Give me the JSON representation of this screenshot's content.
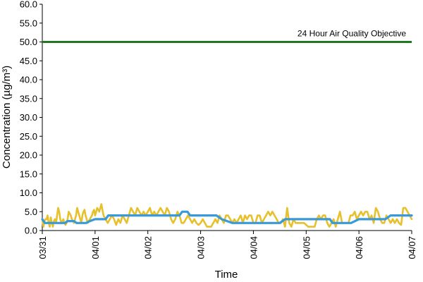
{
  "chart_data": {
    "type": "line",
    "xlabel": "Time",
    "ylabel": "Concentration (µg/m³)",
    "x_ticks": [
      "03/31",
      "04/01",
      "04/02",
      "04/03",
      "04/04",
      "04/05",
      "04/06",
      "04/07"
    ],
    "ylim": [
      0,
      60
    ],
    "y_ticks": [
      "0.0",
      "5.0",
      "10.0",
      "15.0",
      "20.0",
      "25.0",
      "30.0",
      "35.0",
      "40.0",
      "45.0",
      "50.0",
      "55.0",
      "60.0"
    ],
    "grid": false,
    "legend": "none",
    "objective": {
      "label": "24 Hour Air Quality Objective",
      "value": 50.0,
      "color": "#1f7a1f"
    },
    "series": [
      {
        "color": "#e8c02c",
        "x": [
          0,
          0.02,
          0.04,
          0.06,
          0.08,
          0.1,
          0.12,
          0.14,
          0.16,
          0.18,
          0.2,
          0.22,
          0.24,
          0.26,
          0.28,
          0.3,
          0.32,
          0.34,
          0.36,
          0.38,
          0.4,
          0.42,
          0.44,
          0.46,
          0.48,
          0.5,
          0.52,
          0.54,
          0.56,
          0.58,
          0.6,
          0.62,
          0.64,
          0.66,
          0.68,
          0.7,
          0.72,
          0.74,
          0.76,
          0.78,
          0.8,
          0.82,
          0.84,
          0.86,
          0.88,
          0.9,
          0.92,
          0.94,
          0.96,
          0.98,
          1.0,
          1.04,
          1.08,
          1.12,
          1.16,
          1.2,
          1.24,
          1.28,
          1.32,
          1.36,
          1.4,
          1.44,
          1.48,
          1.52,
          1.56,
          1.6,
          1.64,
          1.68,
          1.72,
          1.76,
          1.8,
          1.84,
          1.88,
          1.92,
          1.96,
          2.0,
          2.04,
          2.08,
          2.12,
          2.16,
          2.2,
          2.24,
          2.28,
          2.32,
          2.36,
          2.4,
          2.44,
          2.48,
          2.52,
          2.56,
          2.6,
          2.64,
          2.68,
          2.72,
          2.76,
          2.8,
          2.84,
          2.88,
          2.92,
          2.96,
          3.0,
          3.04,
          3.08,
          3.12,
          3.16,
          3.2,
          3.24,
          3.28,
          3.32,
          3.36,
          3.4,
          3.44,
          3.48,
          3.52,
          3.56,
          3.6,
          3.64,
          3.68,
          3.72,
          3.76,
          3.8,
          3.84,
          3.88,
          3.92,
          3.96,
          4.0,
          4.04,
          4.08,
          4.12,
          4.16,
          4.2,
          4.24,
          4.28,
          4.32,
          4.36,
          4.4,
          4.44,
          4.48,
          4.52,
          4.56,
          4.6,
          4.64,
          4.68,
          4.72,
          4.76,
          4.8,
          4.84,
          4.88,
          4.92,
          4.96,
          5.0,
          5.04,
          5.08,
          5.12,
          5.16,
          5.2,
          5.24,
          5.28,
          5.32,
          5.36,
          5.4,
          5.44,
          5.48,
          5.52,
          5.56,
          5.6,
          5.64,
          5.68,
          5.72,
          5.76,
          5.8,
          5.84,
          5.88,
          5.92,
          5.96,
          6.0,
          6.04,
          6.08,
          6.12,
          6.16,
          6.2,
          6.24,
          6.28,
          6.32,
          6.36,
          6.4,
          6.44,
          6.48,
          6.52,
          6.56,
          6.6,
          6.64,
          6.68,
          6.72,
          6.76,
          6.8,
          6.84,
          6.88,
          6.92,
          6.96,
          7.0
        ],
        "values": [
          3.0,
          1.0,
          2.5,
          3.0,
          3.0,
          4.0,
          2.0,
          1.0,
          3.5,
          2.0,
          1.0,
          2.5,
          3.0,
          2.0,
          4.0,
          6.0,
          5.0,
          3.0,
          2.0,
          2.5,
          3.0,
          2.0,
          1.5,
          2.0,
          3.0,
          5.0,
          4.5,
          4.0,
          3.0,
          2.5,
          2.0,
          3.0,
          4.0,
          6.0,
          5.0,
          4.0,
          3.0,
          2.0,
          4.0,
          5.0,
          5.5,
          4.0,
          3.0,
          2.0,
          2.5,
          3.0,
          3.5,
          4.0,
          5.0,
          5.5,
          4.0,
          6.0,
          5.0,
          7.0,
          4.0,
          3.0,
          2.0,
          3.0,
          4.0,
          3.0,
          1.5,
          3.0,
          2.0,
          4.0,
          3.0,
          2.0,
          4.0,
          6.0,
          5.0,
          4.0,
          6.0,
          5.0,
          4.0,
          5.0,
          4.0,
          5.0,
          6.0,
          4.0,
          5.0,
          4.0,
          5.0,
          6.0,
          5.0,
          4.0,
          6.0,
          5.0,
          3.0,
          2.0,
          3.0,
          5.0,
          4.0,
          2.0,
          2.0,
          3.0,
          4.0,
          3.0,
          2.0,
          3.0,
          2.0,
          1.5,
          2.0,
          3.0,
          2.0,
          1.0,
          1.0,
          1.0,
          2.0,
          3.0,
          2.0,
          4.0,
          3.0,
          2.0,
          4.0,
          4.0,
          3.0,
          2.0,
          3.0,
          2.0,
          3.0,
          4.0,
          2.0,
          4.0,
          3.0,
          4.0,
          4.0,
          2.0,
          2.0,
          4.0,
          4.0,
          2.0,
          3.0,
          4.0,
          5.0,
          4.0,
          5.0,
          4.0,
          3.0,
          2.0,
          2.0,
          3.0,
          1.0,
          6.0,
          2.0,
          1.0,
          3.0,
          2.0,
          2.0,
          2.0,
          2.0,
          2.0,
          1.5,
          1.0,
          1.0,
          1.0,
          1.0,
          3.0,
          4.0,
          3.0,
          4.0,
          4.0,
          2.0,
          1.0,
          2.0,
          3.0,
          1.0,
          3.0,
          5.0,
          2.0,
          2.0,
          2.0,
          2.0,
          4.0,
          4.0,
          5.0,
          3.0,
          4.0,
          5.0,
          4.0,
          5.0,
          5.0,
          3.0,
          4.0,
          2.0,
          6.0,
          5.0,
          3.0,
          2.0,
          2.0,
          4.0,
          3.0,
          2.0,
          3.0,
          2.0,
          3.0,
          2.0,
          1.5,
          6.0,
          6.0,
          5.0,
          4.0,
          3.0
        ]
      },
      {
        "color": "#3a9ad9",
        "x": [
          0,
          0.05,
          0.33,
          0.43,
          0.48,
          0.6,
          0.65,
          0.83,
          0.9,
          1.0,
          1.03,
          1.2,
          1.25,
          1.6,
          1.7,
          2.0,
          2.6,
          2.65,
          2.75,
          2.8,
          3.0,
          3.3,
          3.4,
          3.6,
          3.7,
          4.0,
          4.5,
          4.6,
          5.0,
          5.45,
          5.5,
          5.8,
          5.85,
          6.0,
          6.5,
          6.6,
          7.0
        ],
        "values": [
          3.0,
          2.0,
          2.0,
          2.0,
          2.5,
          2.5,
          2.0,
          2.0,
          2.5,
          3.0,
          3.0,
          3.0,
          4.0,
          4.0,
          4.0,
          4.0,
          4.0,
          5.0,
          5.0,
          4.0,
          4.0,
          4.0,
          3.0,
          2.0,
          2.0,
          2.0,
          2.0,
          3.0,
          3.0,
          3.0,
          2.0,
          2.0,
          2.0,
          3.0,
          3.0,
          4.0,
          4.0
        ]
      }
    ]
  }
}
